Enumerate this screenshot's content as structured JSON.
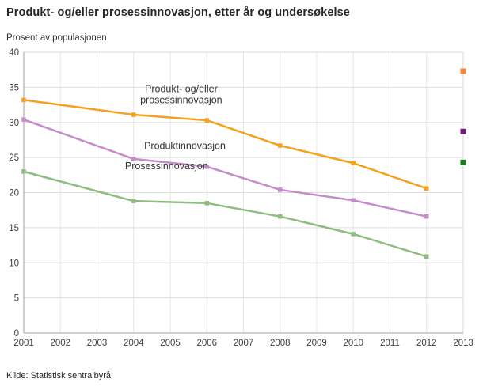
{
  "page": {
    "title": "Produkt- og/eller prosessinnovasjon, etter år og undersøkelse",
    "source": "Kilde: Statistisk sentralbyrå."
  },
  "chart_data": {
    "type": "line",
    "title": "Produkt- og/eller prosessinnovasjon, etter år og undersøkelse",
    "ylabel": "Prosent av populasjonen",
    "xlabel": "",
    "xlim": [
      2001,
      2013
    ],
    "ylim": [
      0,
      40
    ],
    "yticks": [
      0,
      5,
      10,
      15,
      20,
      25,
      30,
      35,
      40
    ],
    "xticks": [
      2001,
      2002,
      2003,
      2004,
      2005,
      2006,
      2007,
      2008,
      2009,
      2010,
      2011,
      2012,
      2013
    ],
    "grid": true,
    "legend_position": "inline-annotations",
    "x": [
      2001,
      2004,
      2006,
      2008,
      2010,
      2012
    ],
    "series": [
      {
        "name": "Produkt- og/eller prosessinnovasjon",
        "color": "#F5A11C",
        "values": [
          33.2,
          31.1,
          30.3,
          26.7,
          24.2,
          20.6
        ],
        "extra_point": {
          "x": 2013,
          "y": 37.3,
          "color": "#F6883C"
        }
      },
      {
        "name": "Produktinnovasjon",
        "color": "#C58BCB",
        "values": [
          30.4,
          24.8,
          23.7,
          20.4,
          18.9,
          16.6
        ],
        "extra_point": {
          "x": 2013,
          "y": 28.7,
          "color": "#6E1E78"
        }
      },
      {
        "name": "Prosessinnovasjon",
        "color": "#8FBC7F",
        "values": [
          23.0,
          18.8,
          18.5,
          16.6,
          14.1,
          10.9
        ],
        "extra_point": {
          "x": 2013,
          "y": 24.3,
          "color": "#1C7C1C"
        }
      }
    ],
    "annotations": [
      {
        "lines": [
          "Produkt- og/eller",
          "prosessinnovasjon"
        ],
        "x": 2005.3,
        "y": 34.3,
        "color": "#333333"
      },
      {
        "lines": [
          "Produktinnovasjon"
        ],
        "x": 2005.4,
        "y": 26.2,
        "color": "#333333"
      },
      {
        "lines": [
          "Prosessinnovasjon"
        ],
        "x": 2004.9,
        "y": 23.3,
        "color": "#333333"
      }
    ]
  }
}
